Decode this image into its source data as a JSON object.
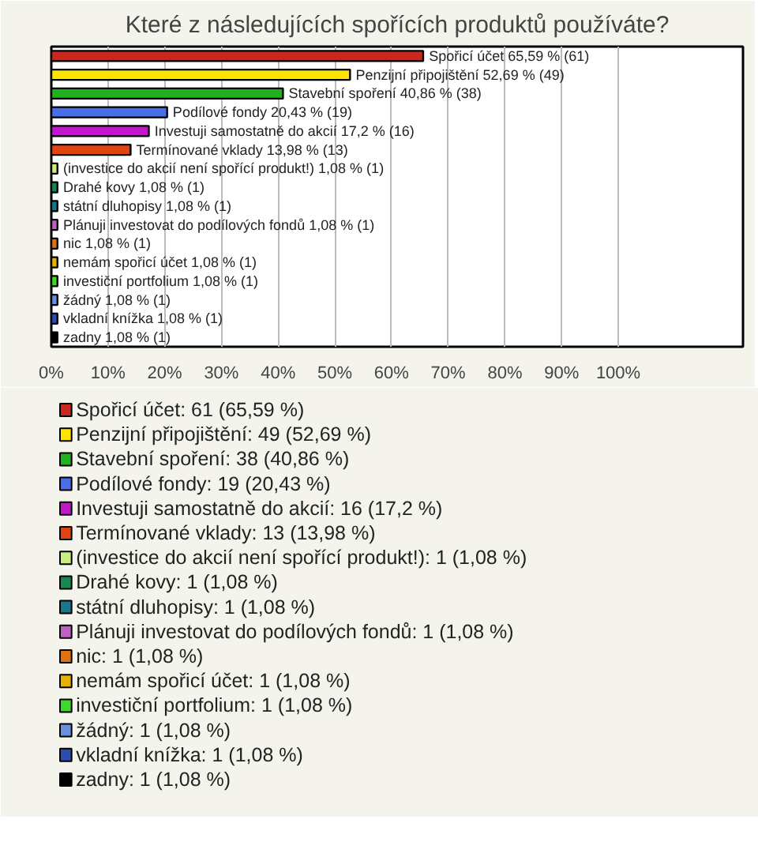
{
  "chart_data": {
    "type": "bar",
    "orientation": "horizontal",
    "title": "Které z následujících spořících produktů používáte?",
    "categories": [
      null,
      null,
      null,
      null,
      null,
      null,
      null,
      null,
      null,
      null,
      null,
      null,
      null,
      null,
      null,
      null
    ],
    "xlim": [
      0,
      122
    ],
    "xticks": [
      {
        "value": 0,
        "label": "0%"
      },
      {
        "value": 10,
        "label": "10%"
      },
      {
        "value": 20,
        "label": "20%"
      },
      {
        "value": 30,
        "label": "30%"
      },
      {
        "value": 40,
        "label": "40%"
      },
      {
        "value": 50,
        "label": "50%"
      },
      {
        "value": 60,
        "label": "60%"
      },
      {
        "value": 70,
        "label": "70%"
      },
      {
        "value": 80,
        "label": "80%"
      },
      {
        "value": 90,
        "label": "90%"
      },
      {
        "value": 100,
        "label": "100%"
      }
    ],
    "grid": "x",
    "legend": "bottom",
    "series": [
      {
        "name": "Spořicí účet: 61 (65,59 %)",
        "color": "#c8281e",
        "values": [
          65.59,
          null,
          null,
          null,
          null,
          null,
          null,
          null,
          null,
          null,
          null,
          null,
          null,
          null,
          null,
          null
        ],
        "value_labels": [
          "Spořicí účet 65,59 % (61)",
          null,
          null,
          null,
          null,
          null,
          null,
          null,
          null,
          null,
          null,
          null,
          null,
          null,
          null,
          null
        ]
      },
      {
        "name": "Penzijní připojištění: 49 (52,69 %)",
        "color": "#ffe400",
        "values": [
          null,
          52.69,
          null,
          null,
          null,
          null,
          null,
          null,
          null,
          null,
          null,
          null,
          null,
          null,
          null,
          null
        ],
        "value_labels": [
          null,
          "Penzijní připojištění 52,69 % (49)",
          null,
          null,
          null,
          null,
          null,
          null,
          null,
          null,
          null,
          null,
          null,
          null,
          null,
          null
        ]
      },
      {
        "name": "Stavební spoření: 38 (40,86 %)",
        "color": "#20b020",
        "values": [
          null,
          null,
          40.86,
          null,
          null,
          null,
          null,
          null,
          null,
          null,
          null,
          null,
          null,
          null,
          null,
          null
        ],
        "value_labels": [
          null,
          null,
          "Stavební spoření 40,86 % (38)",
          null,
          null,
          null,
          null,
          null,
          null,
          null,
          null,
          null,
          null,
          null,
          null,
          null
        ]
      },
      {
        "name": "Podílové fondy: 19 (20,43 %)",
        "color": "#4a6ee8",
        "values": [
          null,
          null,
          null,
          20.43,
          null,
          null,
          null,
          null,
          null,
          null,
          null,
          null,
          null,
          null,
          null,
          null
        ],
        "value_labels": [
          null,
          null,
          null,
          "Podílové fondy 20,43 % (19)",
          null,
          null,
          null,
          null,
          null,
          null,
          null,
          null,
          null,
          null,
          null,
          null
        ]
      },
      {
        "name": "Investuji samostatně do akcií: 16 (17,2 %)",
        "color": "#c018c8",
        "values": [
          null,
          null,
          null,
          null,
          17.2,
          null,
          null,
          null,
          null,
          null,
          null,
          null,
          null,
          null,
          null,
          null
        ],
        "value_labels": [
          null,
          null,
          null,
          null,
          "Investuji samostatně do akcií 17,2 % (16)",
          null,
          null,
          null,
          null,
          null,
          null,
          null,
          null,
          null,
          null,
          null
        ]
      },
      {
        "name": "Termínované vklady: 13 (13,98 %)",
        "color": "#e04410",
        "values": [
          null,
          null,
          null,
          null,
          null,
          13.98,
          null,
          null,
          null,
          null,
          null,
          null,
          null,
          null,
          null,
          null
        ],
        "value_labels": [
          null,
          null,
          null,
          null,
          null,
          "Termínované vklady 13,98 % (13)",
          null,
          null,
          null,
          null,
          null,
          null,
          null,
          null,
          null,
          null
        ]
      },
      {
        "name": "(investice do akcií není spořící produkt!): 1 (1,08 %)",
        "color": "#c8f080",
        "values": [
          null,
          null,
          null,
          null,
          null,
          null,
          1.08,
          null,
          null,
          null,
          null,
          null,
          null,
          null,
          null,
          null
        ],
        "value_labels": [
          null,
          null,
          null,
          null,
          null,
          null,
          "(investice do akcií není spořící produkt!) 1,08 % (1)",
          null,
          null,
          null,
          null,
          null,
          null,
          null,
          null,
          null
        ]
      },
      {
        "name": "Drahé kovy: 1 (1,08 %)",
        "color": "#148a50",
        "values": [
          null,
          null,
          null,
          null,
          null,
          null,
          null,
          1.08,
          null,
          null,
          null,
          null,
          null,
          null,
          null,
          null
        ],
        "value_labels": [
          null,
          null,
          null,
          null,
          null,
          null,
          null,
          "Drahé kovy 1,08 % (1)",
          null,
          null,
          null,
          null,
          null,
          null,
          null,
          null
        ]
      },
      {
        "name": "státní dluhopisy: 1 (1,08 %)",
        "color": "#18788a",
        "values": [
          null,
          null,
          null,
          null,
          null,
          null,
          null,
          null,
          1.08,
          null,
          null,
          null,
          null,
          null,
          null,
          null
        ],
        "value_labels": [
          null,
          null,
          null,
          null,
          null,
          null,
          null,
          null,
          "státní dluhopisy 1,08 % (1)",
          null,
          null,
          null,
          null,
          null,
          null,
          null
        ]
      },
      {
        "name": "Plánuji investovat do podílových fondů: 1 (1,08 %)",
        "color": "#c060c0",
        "values": [
          null,
          null,
          null,
          null,
          null,
          null,
          null,
          null,
          null,
          1.08,
          null,
          null,
          null,
          null,
          null,
          null
        ],
        "value_labels": [
          null,
          null,
          null,
          null,
          null,
          null,
          null,
          null,
          null,
          "Plánuji investovat do podílových fondů 1,08 % (1)",
          null,
          null,
          null,
          null,
          null,
          null
        ]
      },
      {
        "name": "nic: 1 (1,08 %)",
        "color": "#e07010",
        "values": [
          null,
          null,
          null,
          null,
          null,
          null,
          null,
          null,
          null,
          null,
          1.08,
          null,
          null,
          null,
          null,
          null
        ],
        "value_labels": [
          null,
          null,
          null,
          null,
          null,
          null,
          null,
          null,
          null,
          null,
          "nic 1,08 % (1)",
          null,
          null,
          null,
          null,
          null
        ]
      },
      {
        "name": "nemám spořicí účet: 1 (1,08 %)",
        "color": "#e8b000",
        "values": [
          null,
          null,
          null,
          null,
          null,
          null,
          null,
          null,
          null,
          null,
          null,
          1.08,
          null,
          null,
          null,
          null
        ],
        "value_labels": [
          null,
          null,
          null,
          null,
          null,
          null,
          null,
          null,
          null,
          null,
          null,
          "nemám spořicí účet 1,08 % (1)",
          null,
          null,
          null,
          null
        ]
      },
      {
        "name": "investiční portfolium: 1 (1,08 %)",
        "color": "#40d828",
        "values": [
          null,
          null,
          null,
          null,
          null,
          null,
          null,
          null,
          null,
          null,
          null,
          null,
          1.08,
          null,
          null,
          null
        ],
        "value_labels": [
          null,
          null,
          null,
          null,
          null,
          null,
          null,
          null,
          null,
          null,
          null,
          null,
          "investiční portfolium 1,08 % (1)",
          null,
          null,
          null
        ]
      },
      {
        "name": "žádný: 1 (1,08 %)",
        "color": "#6890e0",
        "values": [
          null,
          null,
          null,
          null,
          null,
          null,
          null,
          null,
          null,
          null,
          null,
          null,
          null,
          1.08,
          null,
          null
        ],
        "value_labels": [
          null,
          null,
          null,
          null,
          null,
          null,
          null,
          null,
          null,
          null,
          null,
          null,
          null,
          "žádný 1,08 % (1)",
          null,
          null
        ]
      },
      {
        "name": "vkladní knížka: 1 (1,08 %)",
        "color": "#2c4cb0",
        "values": [
          null,
          null,
          null,
          null,
          null,
          null,
          null,
          null,
          null,
          null,
          null,
          null,
          null,
          null,
          1.08,
          null
        ],
        "value_labels": [
          null,
          null,
          null,
          null,
          null,
          null,
          null,
          null,
          null,
          null,
          null,
          null,
          null,
          null,
          "vkladní knížka 1,08 % (1)",
          null
        ]
      },
      {
        "name": "zadny: 1 (1,08 %)",
        "color": "#000000",
        "values": [
          null,
          null,
          null,
          null,
          null,
          null,
          null,
          null,
          null,
          null,
          null,
          null,
          null,
          null,
          null,
          1.08
        ],
        "value_labels": [
          null,
          null,
          null,
          null,
          null,
          null,
          null,
          null,
          null,
          null,
          null,
          null,
          null,
          null,
          null,
          "zadny 1,08 % (1)"
        ]
      }
    ]
  }
}
